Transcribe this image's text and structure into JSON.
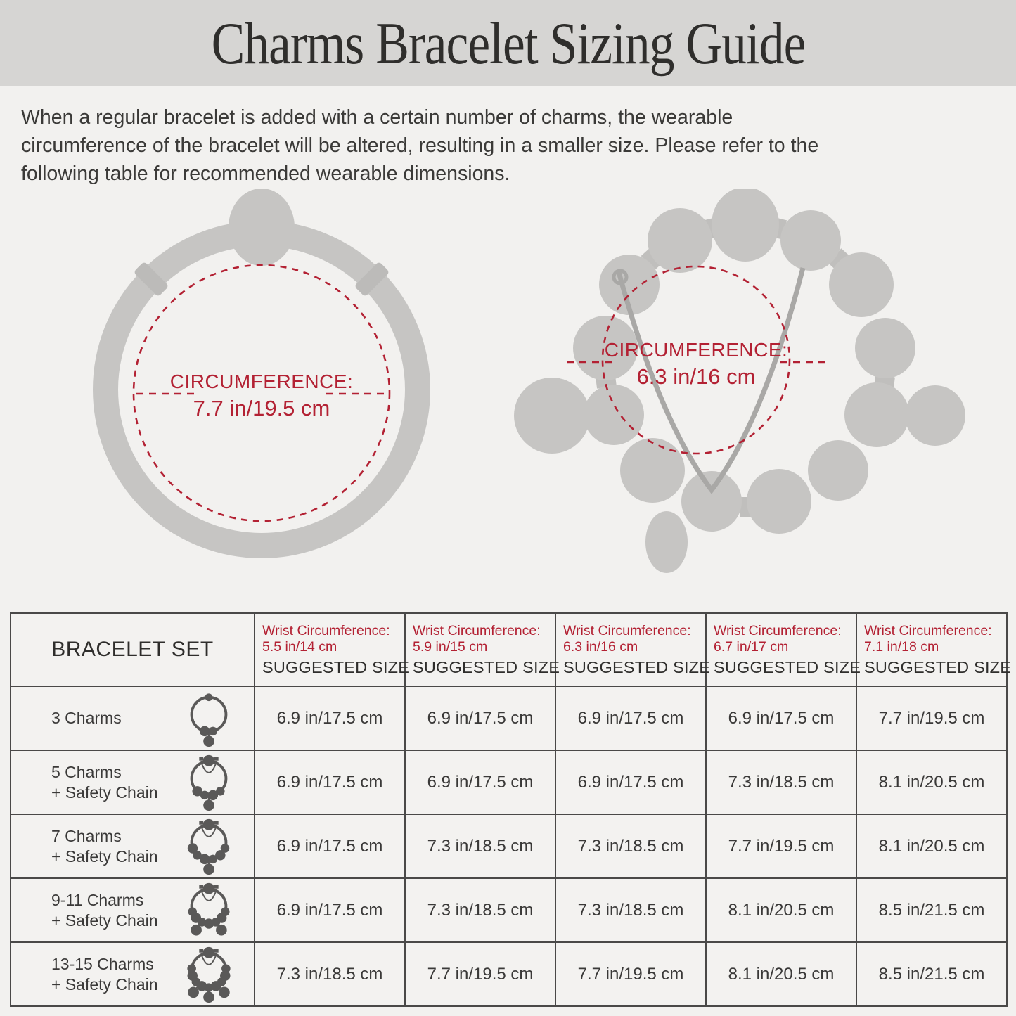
{
  "colors": {
    "accent_red": "#b32133",
    "band_bg": "#d6d5d3",
    "page_bg": "#f2f1ef",
    "silhouette_gray": "#c6c5c3",
    "chain_gray": "#a9a8a6",
    "table_icon_gray": "#5a5958",
    "table_border": "#4a4948"
  },
  "header": {
    "title": "Charms Bracelet Sizing Guide"
  },
  "intro": {
    "lines": [
      "When a regular bracelet is added with a certain number of charms, the wearable",
      "circumference of the bracelet will be altered, resulting in a smaller size. Please refer to the",
      "following table for recommended wearable dimensions."
    ]
  },
  "diagrams": [
    {
      "name": "regular-bracelet",
      "label": "CIRCUMFERENCE:",
      "value": "7.7 in/19.5 cm"
    },
    {
      "name": "charm-bracelet-with-safety-chain",
      "label": "CIRCUMFERENCE:",
      "value": "6.3 in/16 cm"
    }
  ],
  "table": {
    "set_header": "BRACELET SET",
    "size_columns": [
      {
        "wrist_label": "Wrist Circumference:",
        "wrist_value": "5.5 in/14 cm",
        "suggested": "SUGGESTED SIZE"
      },
      {
        "wrist_label": "Wrist Circumference:",
        "wrist_value": "5.9 in/15 cm",
        "suggested": "SUGGESTED SIZE"
      },
      {
        "wrist_label": "Wrist Circumference:",
        "wrist_value": "6.3 in/16 cm",
        "suggested": "SUGGESTED SIZE"
      },
      {
        "wrist_label": "Wrist Circumference:",
        "wrist_value": "6.7 in/17 cm",
        "suggested": "SUGGESTED SIZE"
      },
      {
        "wrist_label": "Wrist Circumference:",
        "wrist_value": "7.1 in/18 cm",
        "suggested": "SUGGESTED SIZE"
      }
    ],
    "rows": [
      {
        "label": "3 Charms",
        "sublabel": "",
        "icon": {
          "name": "bracelet-3-charms-icon",
          "ring_beads": 2,
          "dangles": 1,
          "safety_chain": false
        },
        "sizes": [
          "6.9 in/17.5 cm",
          "6.9 in/17.5 cm",
          "6.9 in/17.5 cm",
          "6.9 in/17.5 cm",
          "7.7 in/19.5 cm"
        ]
      },
      {
        "label": "5 Charms",
        "sublabel": "+ Safety Chain",
        "icon": {
          "name": "bracelet-5-charms-icon",
          "ring_beads": 4,
          "dangles": 1,
          "safety_chain": true
        },
        "sizes": [
          "6.9 in/17.5 cm",
          "6.9 in/17.5 cm",
          "6.9 in/17.5 cm",
          "7.3 in/18.5 cm",
          "8.1 in/20.5 cm"
        ]
      },
      {
        "label": "7 Charms",
        "sublabel": "+ Safety Chain",
        "icon": {
          "name": "bracelet-7-charms-icon",
          "ring_beads": 6,
          "dangles": 1,
          "safety_chain": true
        },
        "sizes": [
          "6.9 in/17.5 cm",
          "7.3 in/18.5 cm",
          "7.3 in/18.5 cm",
          "7.7 in/19.5 cm",
          "8.1 in/20.5 cm"
        ]
      },
      {
        "label": "9-11 Charms",
        "sublabel": "+ Safety Chain",
        "icon": {
          "name": "bracelet-9-11-charms-icon",
          "ring_beads": 7,
          "dangles": 2,
          "safety_chain": true
        },
        "sizes": [
          "6.9 in/17.5 cm",
          "7.3 in/18.5 cm",
          "7.3 in/18.5 cm",
          "8.1 in/20.5 cm",
          "8.5 in/21.5 cm"
        ]
      },
      {
        "label": "13-15 Charms",
        "sublabel": "+ Safety Chain",
        "icon": {
          "name": "bracelet-13-15-charms-icon",
          "ring_beads": 9,
          "dangles": 3,
          "safety_chain": true
        },
        "sizes": [
          "7.3 in/18.5 cm",
          "7.7 in/19.5 cm",
          "7.7 in/19.5 cm",
          "8.1 in/20.5 cm",
          "8.5 in/21.5 cm"
        ]
      }
    ]
  }
}
